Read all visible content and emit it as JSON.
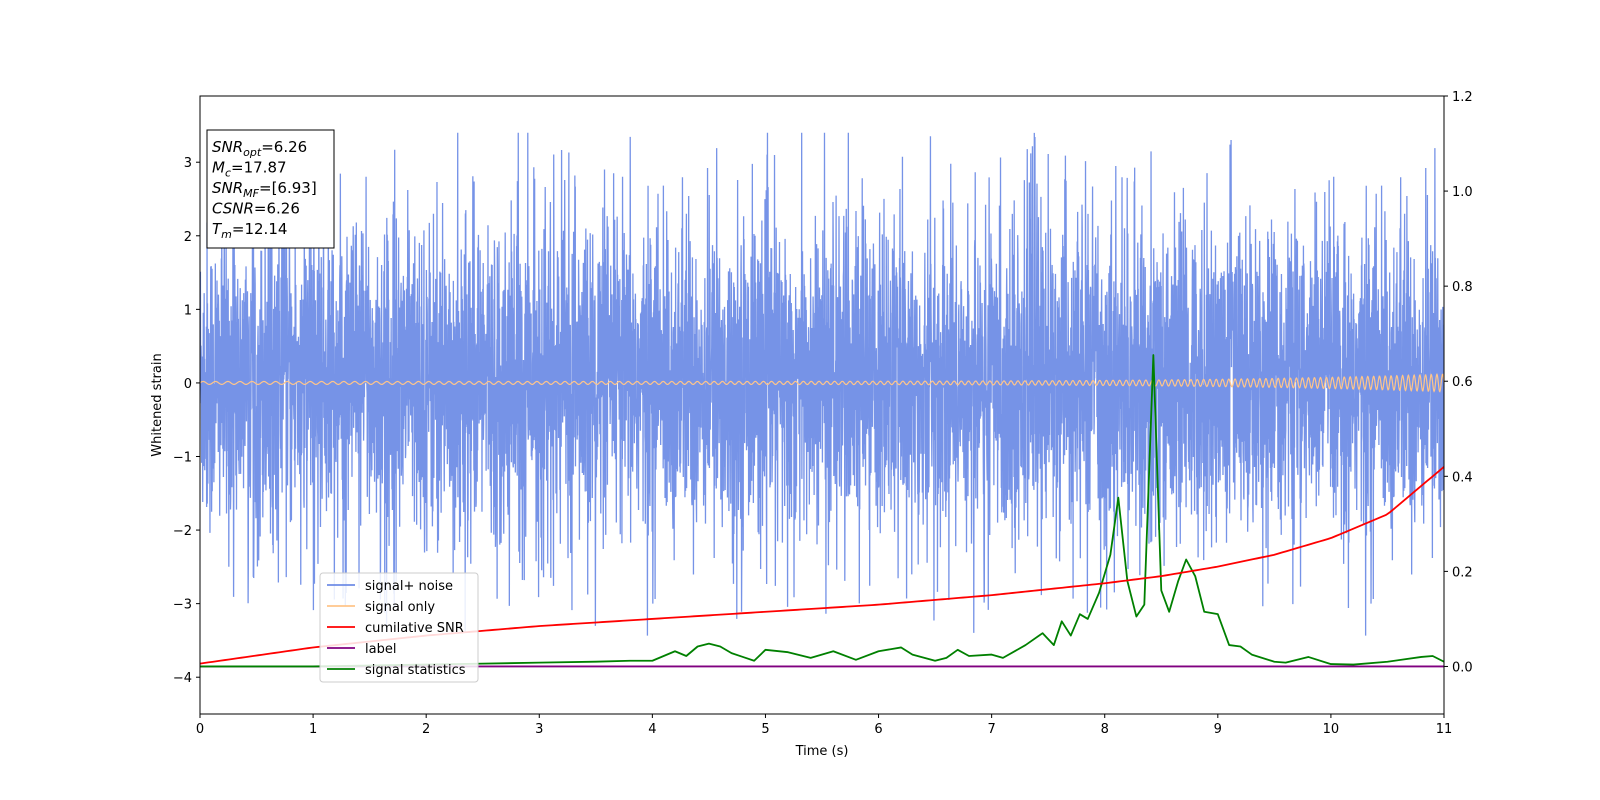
{
  "chart_data": {
    "type": "line",
    "xlabel": "Time (s)",
    "ylabel": "Whitened strain",
    "xlim": [
      0,
      11
    ],
    "ylim_left": [
      -4.5,
      3.9
    ],
    "ylim_right": [
      -0.1,
      1.2
    ],
    "x_ticks": [
      "0",
      "1",
      "2",
      "3",
      "4",
      "5",
      "6",
      "7",
      "8",
      "9",
      "10",
      "11"
    ],
    "y_ticks_left": [
      "3",
      "2",
      "1",
      "0",
      "−1",
      "−2",
      "−3",
      "−4"
    ],
    "y_ticks_right": [
      "1.2",
      "1.0",
      "0.8",
      "0.6",
      "0.4",
      "0.2",
      "0.0"
    ],
    "legend_position": "lower-left",
    "grid": false,
    "info_box": {
      "lines": [
        {
          "base": "SNR",
          "sub": "opt",
          "rest": "=6.26"
        },
        {
          "base": "M",
          "sub": "c",
          "rest": "=17.87"
        },
        {
          "base": "SNR",
          "sub": "MF",
          "rest": "=[6.93]"
        },
        {
          "base": "CSNR",
          "sub": "",
          "rest": "=6.26"
        },
        {
          "base": "T",
          "sub": "m",
          "rest": "=12.14"
        }
      ]
    },
    "series": [
      {
        "name": "signal+ noise",
        "color": "#6f8de6",
        "axis": "left",
        "description_stats": {
          "amplitude_range": [
            -4.2,
            3.4
          ]
        }
      },
      {
        "name": "signal only",
        "color": "#ffc58a",
        "axis": "left",
        "description_stats": {
          "amplitude_start": 0.02,
          "amplitude_end": 0.12
        }
      },
      {
        "name": "cumilative SNR",
        "color": "#ff0000",
        "axis": "right",
        "x": [
          0,
          1,
          2,
          3,
          4,
          5,
          6,
          7,
          8,
          8.5,
          9,
          9.5,
          10,
          10.5,
          11
        ],
        "values": [
          0.006,
          0.04,
          0.065,
          0.085,
          0.1,
          0.115,
          0.13,
          0.15,
          0.175,
          0.19,
          0.21,
          0.235,
          0.27,
          0.32,
          0.42
        ]
      },
      {
        "name": "label",
        "color": "#800080",
        "axis": "right",
        "x": [
          0,
          11
        ],
        "values": [
          0.0,
          0.0
        ]
      },
      {
        "name": "signal statistics",
        "color": "#008000",
        "axis": "right",
        "x": [
          0,
          0.5,
          1,
          1.5,
          2,
          2.5,
          3,
          3.5,
          3.8,
          4.0,
          4.1,
          4.2,
          4.3,
          4.4,
          4.5,
          4.6,
          4.7,
          4.8,
          4.9,
          5.0,
          5.2,
          5.4,
          5.6,
          5.8,
          6.0,
          6.2,
          6.3,
          6.5,
          6.6,
          6.7,
          6.8,
          7.0,
          7.1,
          7.3,
          7.45,
          7.55,
          7.62,
          7.7,
          7.78,
          7.85,
          7.95,
          8.05,
          8.12,
          8.2,
          8.28,
          8.35,
          8.43,
          8.5,
          8.57,
          8.65,
          8.72,
          8.8,
          8.88,
          9.0,
          9.1,
          9.2,
          9.3,
          9.5,
          9.6,
          9.8,
          10.0,
          10.2,
          10.5,
          10.8,
          10.9,
          11.0
        ],
        "values": [
          0.0,
          0.0,
          0.0,
          0.002,
          0.004,
          0.006,
          0.008,
          0.01,
          0.012,
          0.012,
          0.022,
          0.032,
          0.022,
          0.042,
          0.048,
          0.042,
          0.028,
          0.02,
          0.012,
          0.035,
          0.03,
          0.018,
          0.032,
          0.014,
          0.032,
          0.04,
          0.025,
          0.012,
          0.018,
          0.035,
          0.022,
          0.025,
          0.018,
          0.045,
          0.07,
          0.045,
          0.095,
          0.065,
          0.11,
          0.1,
          0.155,
          0.235,
          0.355,
          0.18,
          0.105,
          0.13,
          0.655,
          0.16,
          0.115,
          0.18,
          0.225,
          0.19,
          0.115,
          0.11,
          0.045,
          0.042,
          0.025,
          0.01,
          0.008,
          0.02,
          0.005,
          0.004,
          0.01,
          0.02,
          0.022,
          0.01
        ]
      }
    ]
  }
}
